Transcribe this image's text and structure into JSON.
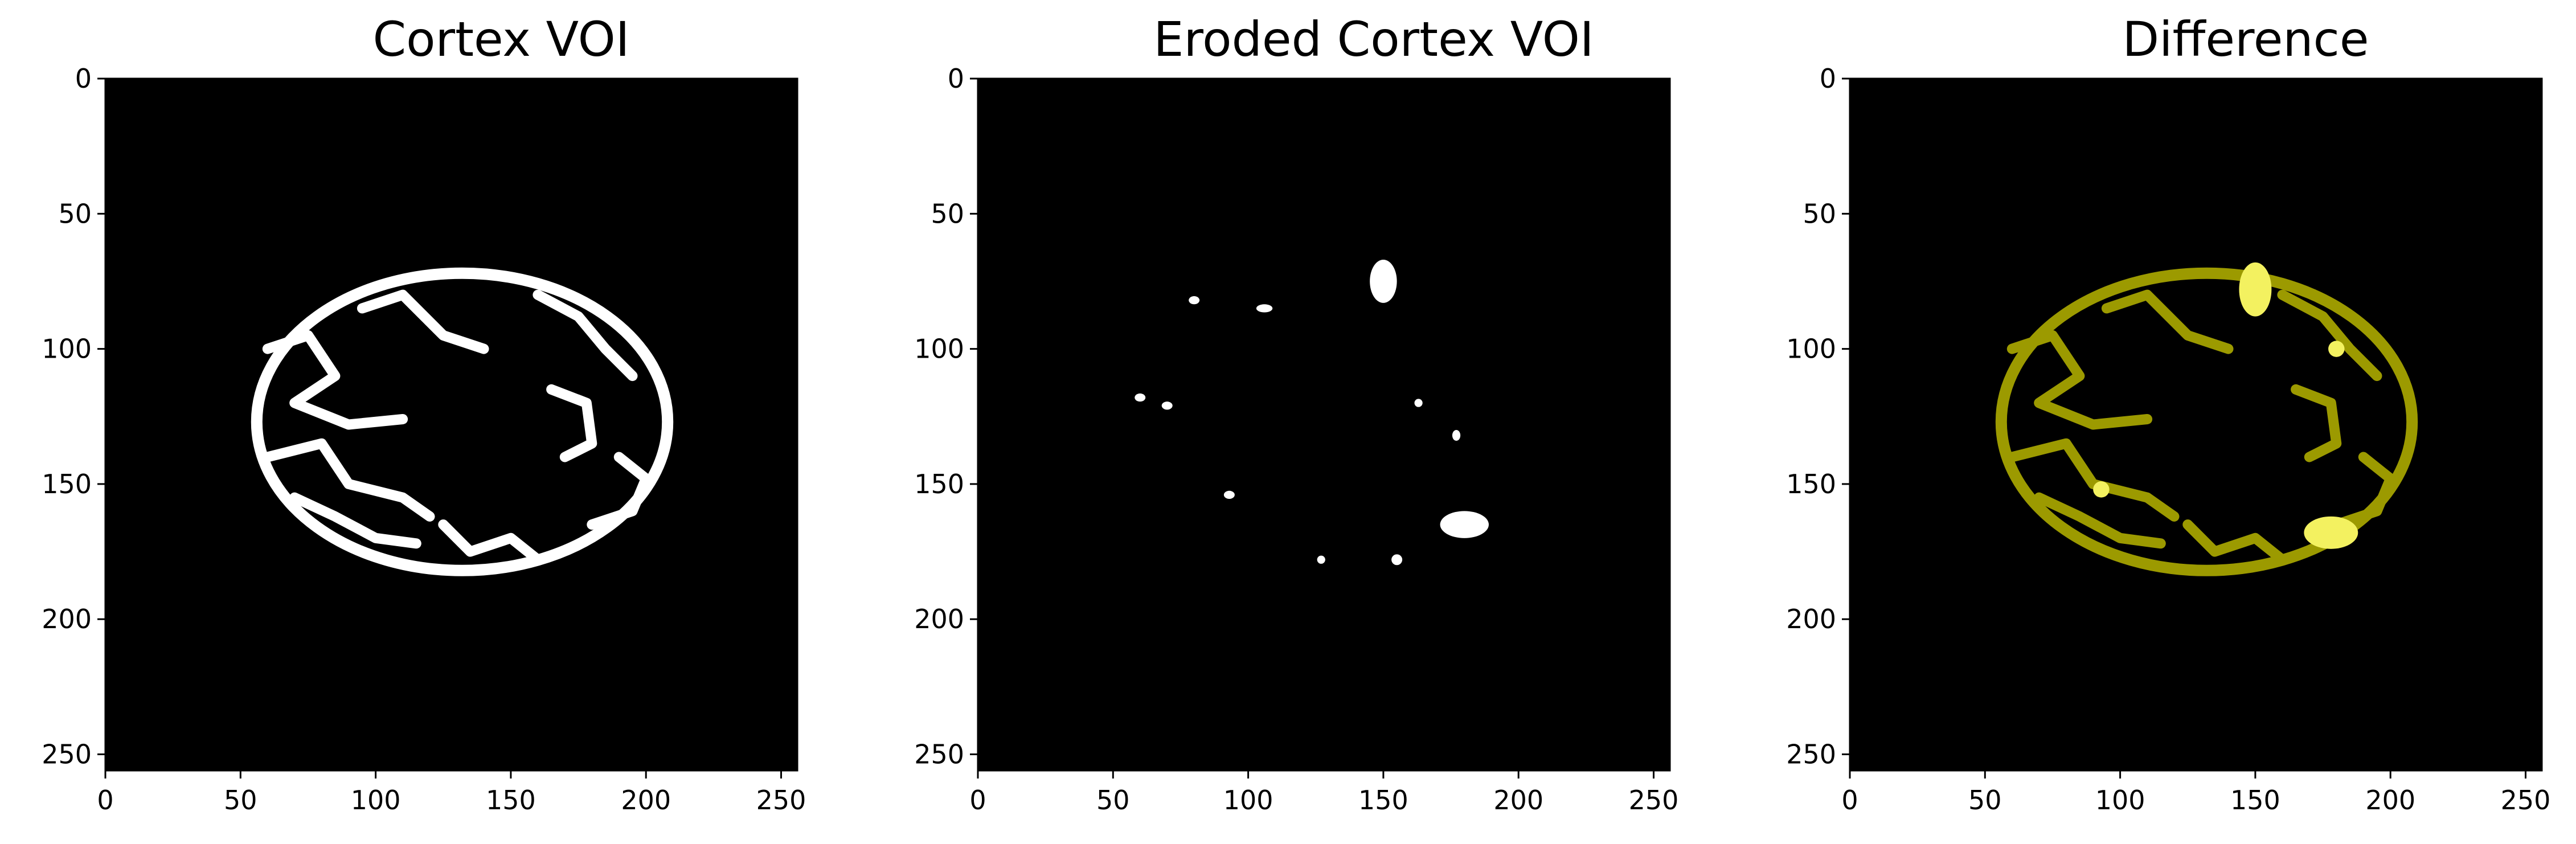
{
  "panels": [
    {
      "title": "Cortex VOI",
      "style": "mask-white"
    },
    {
      "title": "Eroded Cortex VOI",
      "style": "eroded"
    },
    {
      "title": "Difference",
      "style": "difference"
    }
  ],
  "axis": {
    "x_ticks": [
      "0",
      "50",
      "100",
      "150",
      "200",
      "250"
    ],
    "y_ticks": [
      "0",
      "50",
      "100",
      "150",
      "200",
      "250"
    ],
    "range": [
      0,
      256
    ]
  },
  "colors": {
    "background": "#000000",
    "mask": "#ffffff",
    "difference_dark": "#9c9a00",
    "difference_bright": "#f3f160"
  }
}
